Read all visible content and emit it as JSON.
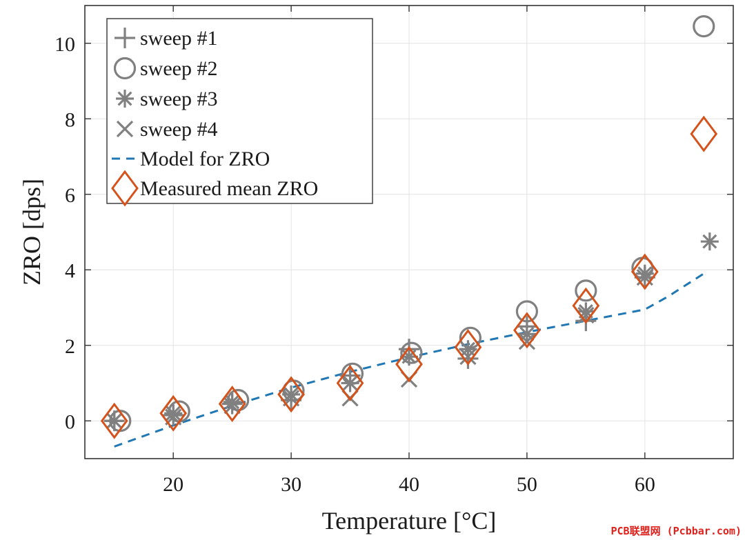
{
  "chart_data": {
    "type": "scatter",
    "xlabel": "Temperature [°C]",
    "ylabel": "ZRO [dps]",
    "xlim": [
      12.5,
      67.5
    ],
    "ylim": [
      -1,
      11
    ],
    "xticks": [
      20,
      30,
      40,
      50,
      60
    ],
    "yticks": [
      0,
      2,
      4,
      6,
      8,
      10
    ],
    "grid": true,
    "legend_position": "top-left",
    "series": [
      {
        "name": "sweep #1",
        "marker": "plus",
        "color": "#808080",
        "x": [
          15,
          20,
          25,
          30,
          35,
          40,
          45,
          50,
          55,
          60
        ],
        "y": [
          0.0,
          0.15,
          0.45,
          0.55,
          1.2,
          1.9,
          1.65,
          2.5,
          2.65,
          3.8
        ]
      },
      {
        "name": "sweep #2",
        "marker": "circle",
        "color": "#808080",
        "x": [
          15.5,
          20.5,
          25.5,
          30.2,
          35.2,
          40.2,
          45.2,
          50,
          55,
          59.8,
          65
        ],
        "y": [
          0.0,
          0.25,
          0.55,
          0.8,
          1.25,
          1.8,
          2.2,
          2.9,
          3.45,
          4.05,
          10.45
        ]
      },
      {
        "name": "sweep #3",
        "marker": "asterisk",
        "color": "#808080",
        "x": [
          15,
          20,
          25,
          30,
          35,
          40,
          45,
          50,
          55,
          60,
          65.5
        ],
        "y": [
          0.0,
          0.2,
          0.5,
          0.7,
          1.0,
          1.7,
          1.9,
          2.3,
          2.9,
          3.9,
          4.75
        ]
      },
      {
        "name": "sweep #4",
        "marker": "x",
        "color": "#808080",
        "x": [
          15,
          20,
          25,
          30,
          35,
          40,
          45,
          50,
          55,
          60
        ],
        "y": [
          0.0,
          0.1,
          0.4,
          0.6,
          0.6,
          1.1,
          1.7,
          2.1,
          2.8,
          3.8
        ]
      },
      {
        "name": "Model for ZRO",
        "type": "line",
        "style": "dashed",
        "color": "#1f77b4",
        "x": [
          15,
          20,
          25,
          30,
          35,
          40,
          45,
          50,
          55,
          60,
          62,
          65
        ],
        "y": [
          -0.68,
          -0.12,
          0.4,
          0.88,
          1.3,
          1.68,
          2.03,
          2.35,
          2.65,
          2.95,
          3.3,
          3.9
        ]
      },
      {
        "name": "Measured mean ZRO",
        "marker": "diamond",
        "color": "#d4531c",
        "x": [
          15,
          20,
          25,
          30,
          35,
          40,
          45,
          50,
          55,
          60,
          65
        ],
        "y": [
          0.0,
          0.2,
          0.45,
          0.7,
          1.0,
          1.5,
          1.95,
          2.4,
          3.05,
          3.95,
          7.6
        ]
      }
    ]
  },
  "watermark": "PCB联盟网 (Pcbbar.com)"
}
